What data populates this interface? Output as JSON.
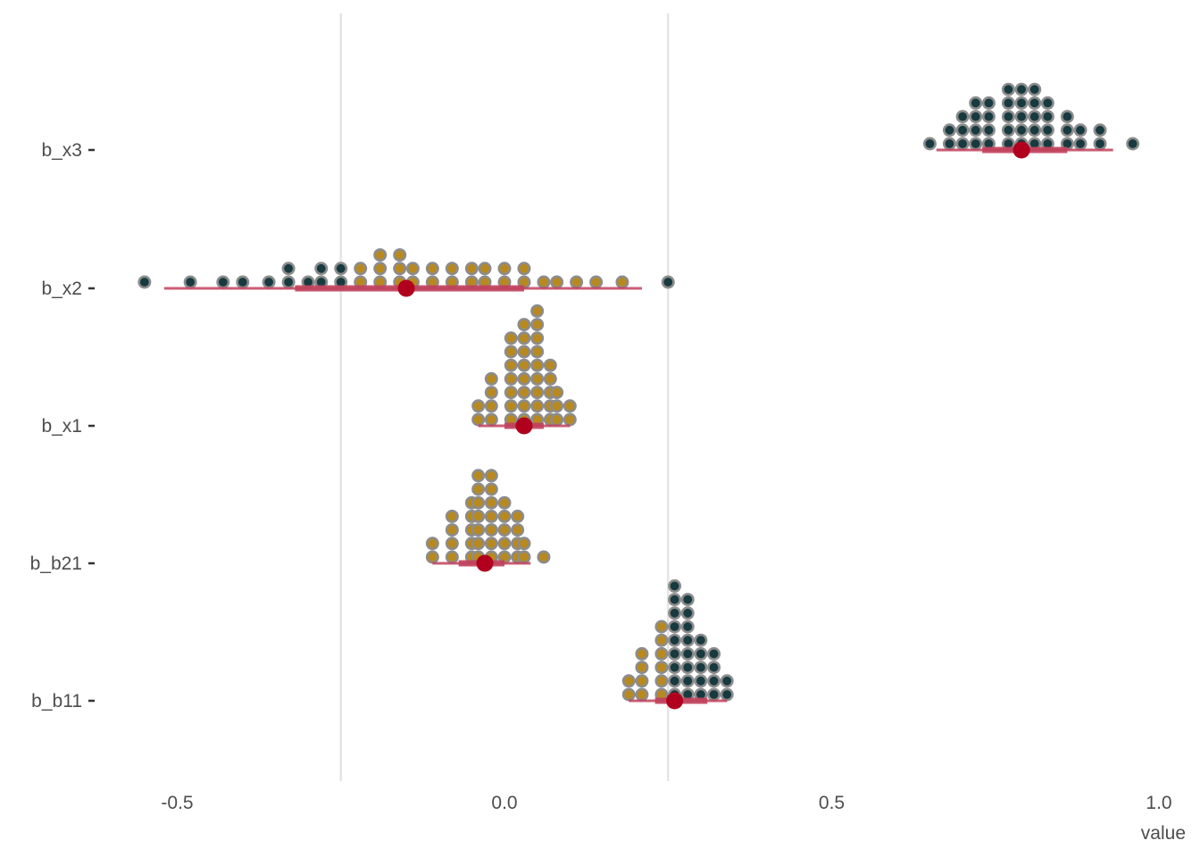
{
  "chart_data": {
    "type": "dotplot",
    "xlabel": "value",
    "ylabel": "",
    "title": "",
    "xlim": [
      -0.6,
      1.0
    ],
    "x_ticks": [
      -0.5,
      0.0,
      0.5,
      1.0
    ],
    "x_tick_labels": [
      "-0.5",
      "0.0",
      "0.5",
      "1.0"
    ],
    "reference_lines": [
      -0.25,
      0.25
    ],
    "grid": false,
    "legend": "none",
    "colors": {
      "fill_gold": "#b8891e",
      "fill_dark": "#173a40",
      "point_outline": "#8c8c8c",
      "interval": "#c0415c",
      "point": "#b0001e",
      "ref_line": "#e5e5e5"
    },
    "parameters": [
      {
        "name": "b_x3",
        "point_estimate": 0.79,
        "interval_inner": [
          0.73,
          0.86
        ],
        "interval_outer": [
          0.66,
          0.93
        ],
        "columns": [
          {
            "x": 0.65,
            "count": 1,
            "color": "dark"
          },
          {
            "x": 0.68,
            "count": 2,
            "color": "dark"
          },
          {
            "x": 0.7,
            "count": 3,
            "color": "dark"
          },
          {
            "x": 0.72,
            "count": 4,
            "color": "dark"
          },
          {
            "x": 0.74,
            "count": 4,
            "color": "dark"
          },
          {
            "x": 0.77,
            "count": 5,
            "color": "dark"
          },
          {
            "x": 0.79,
            "count": 5,
            "color": "dark"
          },
          {
            "x": 0.81,
            "count": 5,
            "color": "dark"
          },
          {
            "x": 0.83,
            "count": 4,
            "color": "dark"
          },
          {
            "x": 0.86,
            "count": 3,
            "color": "dark"
          },
          {
            "x": 0.88,
            "count": 2,
            "color": "dark"
          },
          {
            "x": 0.91,
            "count": 2,
            "color": "dark"
          },
          {
            "x": 0.96,
            "count": 1,
            "color": "dark"
          }
        ]
      },
      {
        "name": "b_x2",
        "point_estimate": -0.15,
        "interval_inner": [
          -0.32,
          0.03
        ],
        "interval_outer": [
          -0.52,
          0.21
        ],
        "columns": [
          {
            "x": -0.55,
            "count": 1,
            "color": "dark"
          },
          {
            "x": -0.48,
            "count": 1,
            "color": "dark"
          },
          {
            "x": -0.43,
            "count": 1,
            "color": "dark"
          },
          {
            "x": -0.4,
            "count": 1,
            "color": "dark"
          },
          {
            "x": -0.36,
            "count": 1,
            "color": "dark"
          },
          {
            "x": -0.33,
            "count": 2,
            "color": "dark"
          },
          {
            "x": -0.3,
            "count": 1,
            "color": "dark"
          },
          {
            "x": -0.28,
            "count": 2,
            "color": "dark"
          },
          {
            "x": -0.25,
            "count": 2,
            "color": "dark"
          },
          {
            "x": -0.22,
            "count": 2,
            "color": "gold"
          },
          {
            "x": -0.19,
            "count": 3,
            "color": "gold"
          },
          {
            "x": -0.16,
            "count": 3,
            "color": "gold"
          },
          {
            "x": -0.14,
            "count": 2,
            "color": "gold"
          },
          {
            "x": -0.11,
            "count": 2,
            "color": "gold"
          },
          {
            "x": -0.08,
            "count": 2,
            "color": "gold"
          },
          {
            "x": -0.05,
            "count": 2,
            "color": "gold"
          },
          {
            "x": -0.03,
            "count": 2,
            "color": "gold"
          },
          {
            "x": 0.0,
            "count": 2,
            "color": "gold"
          },
          {
            "x": 0.03,
            "count": 2,
            "color": "gold"
          },
          {
            "x": 0.06,
            "count": 1,
            "color": "gold"
          },
          {
            "x": 0.08,
            "count": 1,
            "color": "gold"
          },
          {
            "x": 0.11,
            "count": 1,
            "color": "gold"
          },
          {
            "x": 0.14,
            "count": 1,
            "color": "gold"
          },
          {
            "x": 0.18,
            "count": 1,
            "color": "gold"
          },
          {
            "x": 0.25,
            "count": 1,
            "color": "dark"
          }
        ]
      },
      {
        "name": "b_x1",
        "point_estimate": 0.03,
        "interval_inner": [
          0.0,
          0.06
        ],
        "interval_outer": [
          -0.04,
          0.1
        ],
        "columns": [
          {
            "x": -0.04,
            "count": 2,
            "color": "gold"
          },
          {
            "x": -0.02,
            "count": 4,
            "color": "gold"
          },
          {
            "x": 0.01,
            "count": 7,
            "color": "gold"
          },
          {
            "x": 0.03,
            "count": 8,
            "color": "gold"
          },
          {
            "x": 0.05,
            "count": 9,
            "color": "gold"
          },
          {
            "x": 0.07,
            "count": 5,
            "color": "gold"
          },
          {
            "x": 0.08,
            "count": 3,
            "color": "gold"
          },
          {
            "x": 0.1,
            "count": 2,
            "color": "gold"
          }
        ]
      },
      {
        "name": "b_b21",
        "point_estimate": -0.03,
        "interval_inner": [
          -0.07,
          0.0
        ],
        "interval_outer": [
          -0.11,
          0.04
        ],
        "columns": [
          {
            "x": -0.11,
            "count": 2,
            "color": "gold"
          },
          {
            "x": -0.08,
            "count": 4,
            "color": "gold"
          },
          {
            "x": -0.05,
            "count": 5,
            "color": "gold"
          },
          {
            "x": -0.04,
            "count": 7,
            "color": "gold"
          },
          {
            "x": -0.02,
            "count": 7,
            "color": "gold"
          },
          {
            "x": 0.0,
            "count": 5,
            "color": "gold"
          },
          {
            "x": 0.02,
            "count": 4,
            "color": "gold"
          },
          {
            "x": 0.03,
            "count": 2,
            "color": "gold"
          },
          {
            "x": 0.06,
            "count": 1,
            "color": "gold"
          }
        ]
      },
      {
        "name": "b_b11",
        "point_estimate": 0.26,
        "interval_inner": [
          0.23,
          0.31
        ],
        "interval_outer": [
          0.19,
          0.34
        ],
        "columns": [
          {
            "x": 0.19,
            "count": 2,
            "color": "gold"
          },
          {
            "x": 0.21,
            "count": 4,
            "color": "gold"
          },
          {
            "x": 0.24,
            "count": 6,
            "color": "gold"
          },
          {
            "x": 0.26,
            "count": 9,
            "color": "dark"
          },
          {
            "x": 0.28,
            "count": 8,
            "color": "dark"
          },
          {
            "x": 0.3,
            "count": 5,
            "color": "dark"
          },
          {
            "x": 0.32,
            "count": 4,
            "color": "dark"
          },
          {
            "x": 0.34,
            "count": 2,
            "color": "dark"
          }
        ]
      }
    ]
  }
}
